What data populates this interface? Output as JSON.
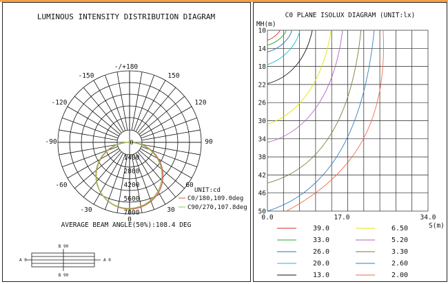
{
  "polar": {
    "title": "LUMINOUS INTENSITY DISTRIBUTION DIAGRAM",
    "angle_labels": {
      "top": "-/+180",
      "n150": "-150",
      "p150": "150",
      "n120": "-120",
      "p120": "120",
      "n90": "-90",
      "p90": "90",
      "n60": "-60",
      "p60": "60",
      "n30": "-30",
      "p30": "30",
      "zero": "0"
    },
    "center_label": "0",
    "ring_labels": [
      "1400",
      "2800",
      "4200",
      "5600",
      "7000"
    ],
    "unit": "UNIT:cd",
    "legend": [
      {
        "label": "C0/180,109.0deg",
        "color": "#d9534f"
      },
      {
        "label": "C90/270,107.8deg",
        "color": "#8fbf4a"
      }
    ],
    "beam_angle_text": "AVERAGE BEAM ANGLE(50%):108.4 DEG",
    "fixture": {
      "b90_top": "B 90",
      "b90_bottom": "B 90",
      "a0_left": "A 0",
      "a0_right": "A 0"
    }
  },
  "isolux": {
    "title": "C0 PLANE ISOLUX DIAGRAM (UNIT:lx)",
    "y_axis_label": "MH(m)",
    "x_axis_label": "S(m)",
    "y_ticks": [
      "10",
      "14",
      "18",
      "22",
      "26",
      "30",
      "34",
      "38",
      "42",
      "46",
      "50"
    ],
    "x_ticks": [
      "0.0",
      "17.0",
      "34.0"
    ]
  },
  "chart_data": {
    "type": "line",
    "title": "C0 PLANE ISOLUX DIAGRAM (UNIT:lx)",
    "xlabel": "S(m)",
    "ylabel": "MH(m)",
    "xlim": [
      0,
      34
    ],
    "ylim": [
      10,
      50
    ],
    "y_inverted": true,
    "series": [
      {
        "name": "39.0",
        "color": "#d62728",
        "curve": [
          [
            0,
            12.2
          ],
          [
            1.3,
            11.8
          ],
          [
            2.4,
            10.6
          ],
          [
            2.7,
            10.0
          ]
        ]
      },
      {
        "name": "33.0",
        "color": "#2ca02c",
        "curve": [
          [
            0,
            13.3
          ],
          [
            2.1,
            12.7
          ],
          [
            3.6,
            11.2
          ],
          [
            4.0,
            10.0
          ]
        ]
      },
      {
        "name": "26.0",
        "color": "#1f77b4",
        "curve": [
          [
            0,
            14.8
          ],
          [
            2.9,
            14.0
          ],
          [
            4.7,
            11.8
          ],
          [
            5.2,
            10.0
          ]
        ]
      },
      {
        "name": "20.0",
        "color": "#17becf",
        "curve": [
          [
            0,
            17.6
          ],
          [
            3.9,
            16.2
          ],
          [
            6.2,
            13.0
          ],
          [
            6.9,
            10.0
          ]
        ]
      },
      {
        "name": "13.0",
        "color": "#111111",
        "curve": [
          [
            0,
            21.8
          ],
          [
            5.1,
            20.4
          ],
          [
            8.3,
            16.0
          ],
          [
            9.5,
            10.0
          ]
        ]
      },
      {
        "name": "6.50",
        "color": "#e5e500",
        "curve": [
          [
            0,
            30.8
          ],
          [
            7.5,
            28.2
          ],
          [
            12.0,
            20.0
          ],
          [
            13.5,
            10.0
          ]
        ]
      },
      {
        "name": "5.20",
        "color": "#b05fc4",
        "curve": [
          [
            0,
            34.8
          ],
          [
            9.0,
            32.4
          ],
          [
            14.4,
            23.0
          ],
          [
            15.9,
            10.0
          ]
        ]
      },
      {
        "name": "3.30",
        "color": "#7a7a3a",
        "curve": [
          [
            0,
            43.8
          ],
          [
            11.5,
            40.6
          ],
          [
            18.0,
            29.0
          ],
          [
            19.8,
            10.0
          ]
        ]
      },
      {
        "name": "2.60",
        "color": "#2f7fc1",
        "curve": [
          [
            0,
            50.0
          ],
          [
            13.2,
            45.7
          ],
          [
            20.5,
            32.0
          ],
          [
            22.6,
            10.0
          ]
        ]
      },
      {
        "name": "2.00",
        "color": "#f06a4a",
        "curve": [
          [
            4.0,
            50.0
          ],
          [
            18.5,
            42.0
          ],
          [
            25.5,
            30.0
          ],
          [
            24.5,
            10.0
          ]
        ]
      }
    ]
  }
}
